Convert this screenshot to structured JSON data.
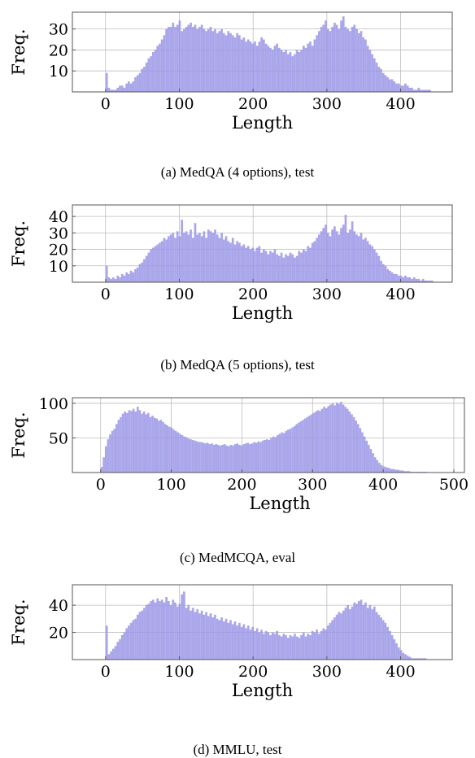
{
  "chart_data": [
    {
      "type": "bar",
      "caption": "(a) MedQA (4 options), test",
      "xlabel": "Length",
      "ylabel": "Freq.",
      "xlim": [
        -45,
        470
      ],
      "ylim": [
        0,
        38
      ],
      "xticks": [
        0,
        100,
        200,
        300,
        400
      ],
      "yticks": [
        10,
        20,
        30
      ],
      "grid": true,
      "color": "#9b97e6",
      "bin_width": 3,
      "x": [
        0,
        3,
        6,
        9,
        12,
        15,
        18,
        21,
        24,
        27,
        30,
        33,
        36,
        39,
        42,
        45,
        48,
        51,
        54,
        57,
        60,
        63,
        66,
        69,
        72,
        75,
        78,
        81,
        84,
        87,
        90,
        93,
        96,
        99,
        102,
        105,
        108,
        111,
        114,
        117,
        120,
        123,
        126,
        129,
        132,
        135,
        138,
        141,
        144,
        147,
        150,
        153,
        156,
        159,
        162,
        165,
        168,
        171,
        174,
        177,
        180,
        183,
        186,
        189,
        192,
        195,
        198,
        201,
        204,
        207,
        210,
        213,
        216,
        219,
        222,
        225,
        228,
        231,
        234,
        237,
        240,
        243,
        246,
        249,
        252,
        255,
        258,
        261,
        264,
        267,
        270,
        273,
        276,
        279,
        282,
        285,
        288,
        291,
        294,
        297,
        300,
        303,
        306,
        309,
        312,
        315,
        318,
        321,
        324,
        327,
        330,
        333,
        336,
        339,
        342,
        345,
        348,
        351,
        354,
        357,
        360,
        363,
        366,
        369,
        372,
        375,
        378,
        381,
        384,
        387,
        390,
        393,
        396,
        399,
        402,
        405,
        408,
        411,
        414,
        417,
        420,
        423,
        426,
        429,
        432,
        435,
        438
      ],
      "values": [
        9,
        2,
        1,
        1,
        1,
        2,
        3,
        3,
        2,
        4,
        5,
        4,
        5,
        7,
        8,
        9,
        11,
        12,
        14,
        16,
        17,
        19,
        20,
        22,
        23,
        25,
        27,
        30,
        31,
        31,
        33,
        31,
        32,
        34,
        29,
        30,
        31,
        32,
        33,
        31,
        32,
        30,
        31,
        32,
        30,
        29,
        30,
        31,
        29,
        30,
        28,
        29,
        30,
        28,
        27,
        29,
        28,
        27,
        26,
        28,
        27,
        25,
        26,
        24,
        25,
        24,
        23,
        24,
        22,
        24,
        26,
        25,
        23,
        22,
        21,
        20,
        22,
        23,
        21,
        20,
        19,
        20,
        18,
        19,
        17,
        18,
        20,
        19,
        20,
        22,
        21,
        23,
        24,
        22,
        25,
        27,
        29,
        31,
        32,
        34,
        30,
        29,
        31,
        33,
        32,
        30,
        34,
        36,
        31,
        30,
        29,
        31,
        32,
        30,
        28,
        29,
        26,
        25,
        22,
        20,
        18,
        16,
        14,
        12,
        11,
        9,
        8,
        7,
        6,
        6,
        5,
        4,
        4,
        3,
        3,
        4,
        3,
        2,
        2,
        1,
        1,
        2,
        1,
        1,
        1,
        1,
        1
      ],
      "series_name": ""
    },
    {
      "type": "bar",
      "caption": "(b) MedQA (5 options), test",
      "xlabel": "Length",
      "ylabel": "Freq.",
      "xlim": [
        -45,
        470
      ],
      "ylim": [
        0,
        47
      ],
      "xticks": [
        0,
        100,
        200,
        300,
        400
      ],
      "yticks": [
        10,
        20,
        30,
        40
      ],
      "grid": true,
      "color": "#9b97e6",
      "bin_width": 3,
      "x": [
        0,
        3,
        6,
        9,
        12,
        15,
        18,
        21,
        24,
        27,
        30,
        33,
        36,
        39,
        42,
        45,
        48,
        51,
        54,
        57,
        60,
        63,
        66,
        69,
        72,
        75,
        78,
        81,
        84,
        87,
        90,
        93,
        96,
        99,
        102,
        105,
        108,
        111,
        114,
        117,
        120,
        123,
        126,
        129,
        132,
        135,
        138,
        141,
        144,
        147,
        150,
        153,
        156,
        159,
        162,
        165,
        168,
        171,
        174,
        177,
        180,
        183,
        186,
        189,
        192,
        195,
        198,
        201,
        204,
        207,
        210,
        213,
        216,
        219,
        222,
        225,
        228,
        231,
        234,
        237,
        240,
        243,
        246,
        249,
        252,
        255,
        258,
        261,
        264,
        267,
        270,
        273,
        276,
        279,
        282,
        285,
        288,
        291,
        294,
        297,
        300,
        303,
        306,
        309,
        312,
        315,
        318,
        321,
        324,
        327,
        330,
        333,
        336,
        339,
        342,
        345,
        348,
        351,
        354,
        357,
        360,
        363,
        366,
        369,
        372,
        375,
        378,
        381,
        384,
        387,
        390,
        393,
        396,
        399,
        402,
        405,
        408,
        411,
        414,
        417,
        420,
        423,
        426,
        429,
        432,
        435,
        438,
        441
      ],
      "values": [
        10,
        3,
        2,
        3,
        2,
        4,
        3,
        5,
        4,
        6,
        5,
        7,
        6,
        8,
        9,
        11,
        12,
        14,
        16,
        18,
        20,
        21,
        22,
        23,
        24,
        25,
        27,
        26,
        28,
        29,
        30,
        27,
        31,
        28,
        38,
        30,
        31,
        29,
        32,
        27,
        36,
        29,
        30,
        28,
        31,
        27,
        32,
        31,
        30,
        32,
        29,
        27,
        30,
        26,
        28,
        25,
        24,
        27,
        23,
        25,
        24,
        22,
        23,
        21,
        22,
        20,
        21,
        19,
        21,
        22,
        18,
        20,
        19,
        17,
        19,
        18,
        20,
        17,
        16,
        18,
        15,
        17,
        16,
        18,
        17,
        15,
        16,
        19,
        18,
        20,
        19,
        22,
        21,
        24,
        25,
        27,
        29,
        31,
        33,
        35,
        30,
        28,
        32,
        34,
        31,
        29,
        33,
        35,
        41,
        30,
        32,
        37,
        31,
        29,
        28,
        30,
        26,
        27,
        25,
        23,
        22,
        20,
        18,
        16,
        13,
        11,
        10,
        8,
        7,
        6,
        5,
        5,
        4,
        4,
        3,
        4,
        3,
        3,
        2,
        3,
        2,
        2,
        1,
        2,
        1,
        1,
        1,
        1
      ],
      "series_name": ""
    },
    {
      "type": "bar",
      "caption": "(c) MedMCQA, eval",
      "xlabel": "Length",
      "ylabel": "Freq.",
      "xlim": [
        -40,
        515
      ],
      "ylim": [
        0,
        108
      ],
      "xticks": [
        0,
        100,
        200,
        300,
        400,
        500
      ],
      "yticks": [
        50,
        100
      ],
      "grid": true,
      "color": "#9b97e6",
      "bin_width": 3,
      "x": [
        0,
        3,
        6,
        9,
        12,
        15,
        18,
        21,
        24,
        27,
        30,
        33,
        36,
        39,
        42,
        45,
        48,
        51,
        54,
        57,
        60,
        63,
        66,
        69,
        72,
        75,
        78,
        81,
        84,
        87,
        90,
        93,
        96,
        99,
        102,
        105,
        108,
        111,
        114,
        117,
        120,
        123,
        126,
        129,
        132,
        135,
        138,
        141,
        144,
        147,
        150,
        153,
        156,
        159,
        162,
        165,
        168,
        171,
        174,
        177,
        180,
        183,
        186,
        189,
        192,
        195,
        198,
        201,
        204,
        207,
        210,
        213,
        216,
        219,
        222,
        225,
        228,
        231,
        234,
        237,
        240,
        243,
        246,
        249,
        252,
        255,
        258,
        261,
        264,
        267,
        270,
        273,
        276,
        279,
        282,
        285,
        288,
        291,
        294,
        297,
        300,
        303,
        306,
        309,
        312,
        315,
        318,
        321,
        324,
        327,
        330,
        333,
        336,
        339,
        342,
        345,
        348,
        351,
        354,
        357,
        360,
        363,
        366,
        369,
        372,
        375,
        378,
        381,
        384,
        387,
        390,
        393,
        396,
        399,
        402,
        405,
        408,
        411,
        414,
        417,
        420,
        423,
        426,
        429,
        432,
        435,
        438,
        441,
        444,
        447,
        450,
        453,
        456,
        459
      ],
      "values": [
        8,
        22,
        38,
        48,
        55,
        60,
        63,
        70,
        76,
        80,
        85,
        88,
        86,
        90,
        89,
        92,
        88,
        95,
        90,
        85,
        88,
        84,
        86,
        80,
        82,
        79,
        78,
        75,
        76,
        73,
        70,
        68,
        66,
        65,
        62,
        60,
        58,
        56,
        54,
        52,
        51,
        49,
        48,
        47,
        46,
        45,
        44,
        44,
        43,
        42,
        43,
        41,
        42,
        40,
        41,
        40,
        39,
        40,
        41,
        39,
        38,
        40,
        39,
        41,
        42,
        40,
        39,
        41,
        42,
        43,
        41,
        42,
        44,
        43,
        45,
        44,
        46,
        47,
        48,
        47,
        50,
        52,
        51,
        54,
        56,
        58,
        57,
        60,
        62,
        63,
        65,
        67,
        70,
        72,
        74,
        76,
        78,
        80,
        82,
        84,
        86,
        88,
        90,
        89,
        92,
        95,
        93,
        96,
        98,
        100,
        97,
        101,
        99,
        102,
        98,
        95,
        92,
        88,
        84,
        80,
        75,
        70,
        64,
        58,
        52,
        46,
        40,
        34,
        28,
        22,
        18,
        14,
        11,
        9,
        8,
        7,
        6,
        5,
        5,
        4,
        4,
        3,
        3,
        2,
        2,
        2,
        1,
        1,
        1,
        1,
        1,
        1,
        1,
        1
      ],
      "series_name": ""
    },
    {
      "type": "bar",
      "caption": "(d) MMLU, test",
      "xlabel": "Length",
      "ylabel": "Freq.",
      "xlim": [
        -45,
        470
      ],
      "ylim": [
        0,
        55
      ],
      "xticks": [
        0,
        100,
        200,
        300,
        400
      ],
      "yticks": [
        20,
        40
      ],
      "grid": true,
      "color": "#9b97e6",
      "bin_width": 3,
      "x": [
        0,
        3,
        6,
        9,
        12,
        15,
        18,
        21,
        24,
        27,
        30,
        33,
        36,
        39,
        42,
        45,
        48,
        51,
        54,
        57,
        60,
        63,
        66,
        69,
        72,
        75,
        78,
        81,
        84,
        87,
        90,
        93,
        96,
        99,
        102,
        105,
        108,
        111,
        114,
        117,
        120,
        123,
        126,
        129,
        132,
        135,
        138,
        141,
        144,
        147,
        150,
        153,
        156,
        159,
        162,
        165,
        168,
        171,
        174,
        177,
        180,
        183,
        186,
        189,
        192,
        195,
        198,
        201,
        204,
        207,
        210,
        213,
        216,
        219,
        222,
        225,
        228,
        231,
        234,
        237,
        240,
        243,
        246,
        249,
        252,
        255,
        258,
        261,
        264,
        267,
        270,
        273,
        276,
        279,
        282,
        285,
        288,
        291,
        294,
        297,
        300,
        303,
        306,
        309,
        312,
        315,
        318,
        321,
        324,
        327,
        330,
        333,
        336,
        339,
        342,
        345,
        348,
        351,
        354,
        357,
        360,
        363,
        366,
        369,
        372,
        375,
        378,
        381,
        384,
        387,
        390,
        393,
        396,
        399,
        402,
        405,
        408,
        411,
        414,
        417,
        420,
        423,
        426,
        429,
        432
      ],
      "values": [
        25,
        4,
        6,
        8,
        10,
        13,
        15,
        18,
        20,
        23,
        25,
        27,
        29,
        30,
        33,
        35,
        36,
        38,
        40,
        41,
        43,
        44,
        42,
        45,
        43,
        44,
        42,
        46,
        43,
        40,
        44,
        42,
        39,
        41,
        48,
        50,
        38,
        40,
        36,
        38,
        35,
        37,
        34,
        36,
        33,
        35,
        32,
        34,
        31,
        33,
        30,
        29,
        31,
        28,
        30,
        27,
        29,
        26,
        28,
        25,
        27,
        24,
        26,
        23,
        25,
        22,
        24,
        21,
        23,
        20,
        22,
        19,
        21,
        20,
        18,
        20,
        19,
        21,
        18,
        17,
        19,
        18,
        16,
        18,
        17,
        19,
        17,
        16,
        18,
        20,
        17,
        19,
        18,
        21,
        20,
        22,
        19,
        21,
        23,
        22,
        25,
        27,
        29,
        31,
        33,
        35,
        34,
        36,
        38,
        40,
        37,
        39,
        42,
        41,
        43,
        44,
        40,
        42,
        38,
        40,
        37,
        39,
        35,
        33,
        31,
        29,
        27,
        24,
        21,
        18,
        15,
        12,
        9,
        7,
        5,
        4,
        3,
        2,
        1,
        1,
        1,
        1,
        1,
        1,
        1
      ],
      "series_name": ""
    }
  ]
}
